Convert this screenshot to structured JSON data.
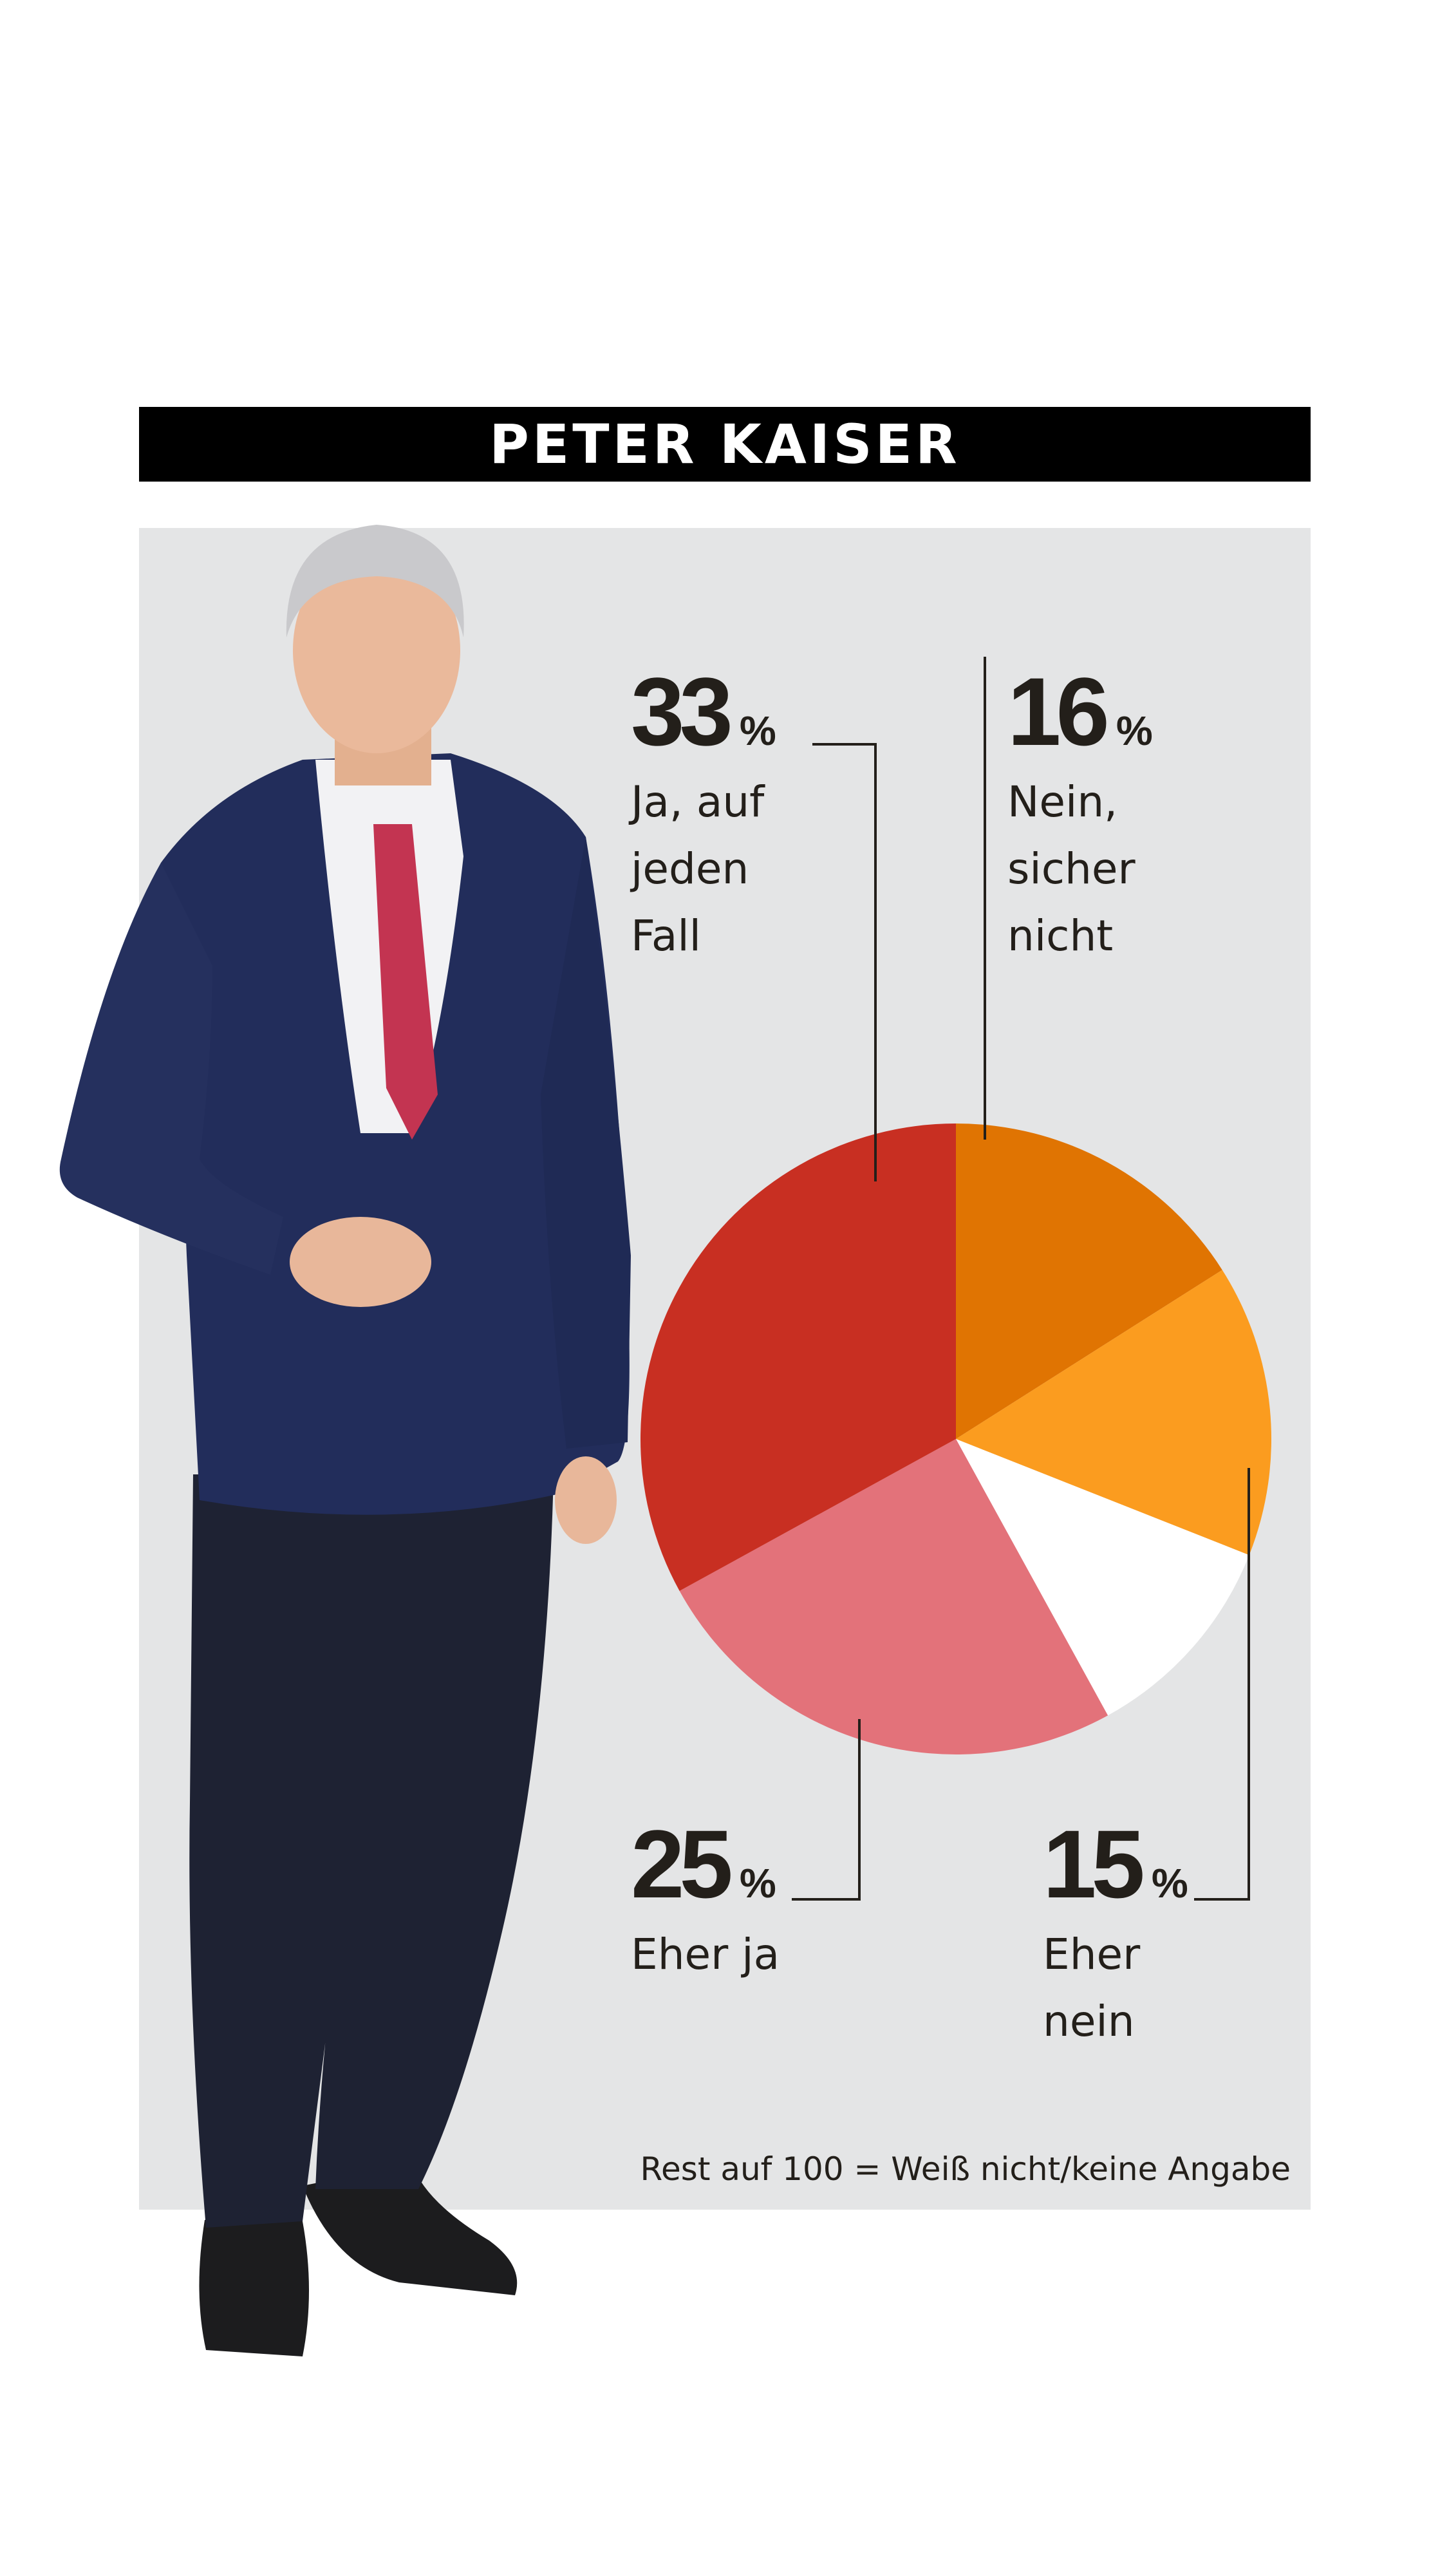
{
  "title": "PETER KAISER",
  "note": "Rest auf 100 = Weiß nicht/keine Angabe",
  "chart_data": {
    "type": "pie",
    "title": "PETER KAISER",
    "categories": [
      "Nein, sicher nicht",
      "Eher nein",
      "Weiß nicht/keine Angabe",
      "Eher ja",
      "Ja, auf jeden Fall"
    ],
    "values": [
      16,
      15,
      11,
      25,
      33
    ],
    "colors": [
      "#e07402",
      "#fb9c1f",
      "#ffffff",
      "#e3727a",
      "#c82f22"
    ],
    "labels": [
      {
        "value": "16",
        "unit": "%",
        "text": "Nein,\nsicher\nnicht"
      },
      {
        "value": "15",
        "unit": "%",
        "text": "Eher\nnein"
      },
      {
        "value": "25",
        "unit": "%",
        "text": "Eher ja"
      },
      {
        "value": "33",
        "unit": "%",
        "text": "Ja, auf\njeden\nFall"
      }
    ]
  }
}
